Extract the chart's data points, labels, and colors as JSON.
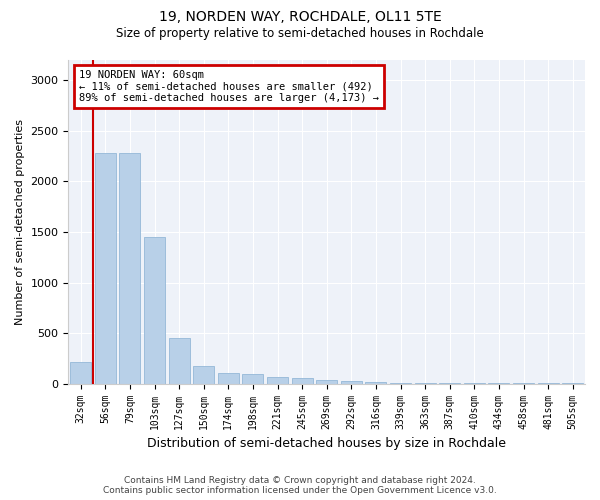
{
  "title": "19, NORDEN WAY, ROCHDALE, OL11 5TE",
  "subtitle": "Size of property relative to semi-detached houses in Rochdale",
  "xlabel": "Distribution of semi-detached houses by size in Rochdale",
  "ylabel": "Number of semi-detached properties",
  "bar_labels": [
    "32sqm",
    "56sqm",
    "79sqm",
    "103sqm",
    "127sqm",
    "150sqm",
    "174sqm",
    "198sqm",
    "221sqm",
    "245sqm",
    "269sqm",
    "292sqm",
    "316sqm",
    "339sqm",
    "363sqm",
    "387sqm",
    "410sqm",
    "434sqm",
    "458sqm",
    "481sqm",
    "505sqm"
  ],
  "bar_values": [
    215,
    2280,
    2280,
    1450,
    450,
    175,
    110,
    95,
    65,
    55,
    35,
    30,
    20,
    5,
    5,
    3,
    3,
    3,
    2,
    2,
    2
  ],
  "bar_color": "#b8d0e8",
  "bar_edge_color": "#94b8d8",
  "red_line_x": 0.5,
  "annotation_text_line1": "19 NORDEN WAY: 60sqm",
  "annotation_text_line2": "← 11% of semi-detached houses are smaller (492)",
  "annotation_text_line3": "89% of semi-detached houses are larger (4,173) →",
  "red_line_color": "#cc0000",
  "annotation_box_color": "#cc0000",
  "ylim": [
    0,
    3200
  ],
  "yticks": [
    0,
    500,
    1000,
    1500,
    2000,
    2500,
    3000
  ],
  "background_color": "#eef2f9",
  "footer_line1": "Contains HM Land Registry data © Crown copyright and database right 2024.",
  "footer_line2": "Contains public sector information licensed under the Open Government Licence v3.0."
}
